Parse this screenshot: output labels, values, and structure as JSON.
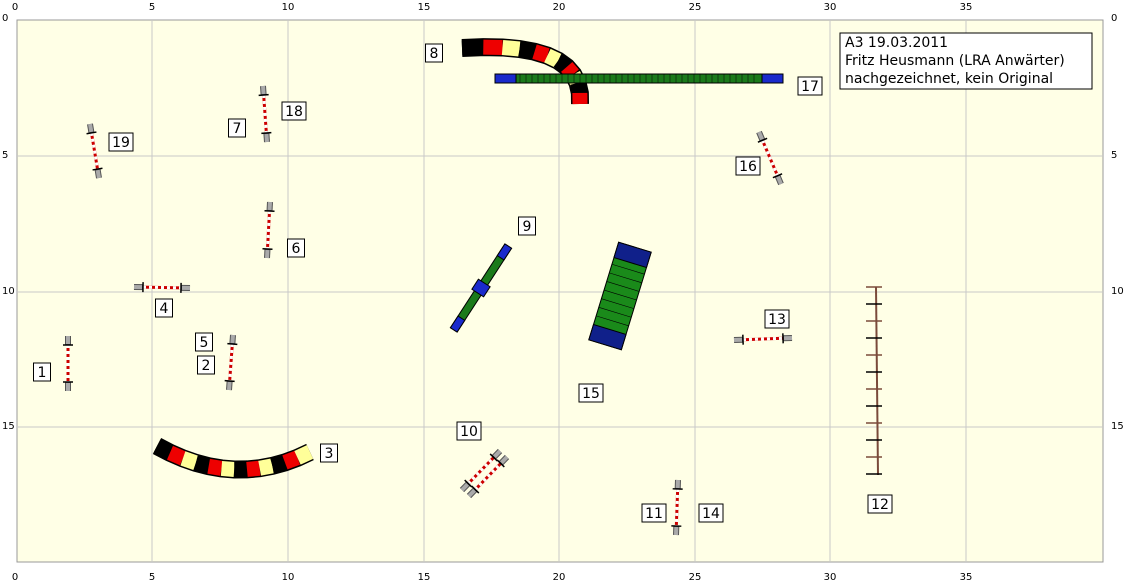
{
  "axis_labels": {
    "top": [
      0,
      5,
      10,
      15,
      20,
      25,
      30,
      35
    ],
    "bottom": [
      0,
      5,
      10,
      15,
      20,
      25,
      30,
      35
    ],
    "left": [
      0,
      5,
      10,
      15
    ],
    "right": [
      0,
      5,
      10,
      15
    ]
  },
  "info": [
    "A3 19.03.2011",
    "Fritz Heusmann (LRA Anwärter)",
    "nachgezeichnet, kein Original"
  ],
  "numbers": [
    "1",
    "2",
    "3",
    "4",
    "5",
    "6",
    "7",
    "8",
    "9",
    "10",
    "11",
    "12",
    "13",
    "14",
    "15",
    "16",
    "17",
    "18",
    "19"
  ]
}
